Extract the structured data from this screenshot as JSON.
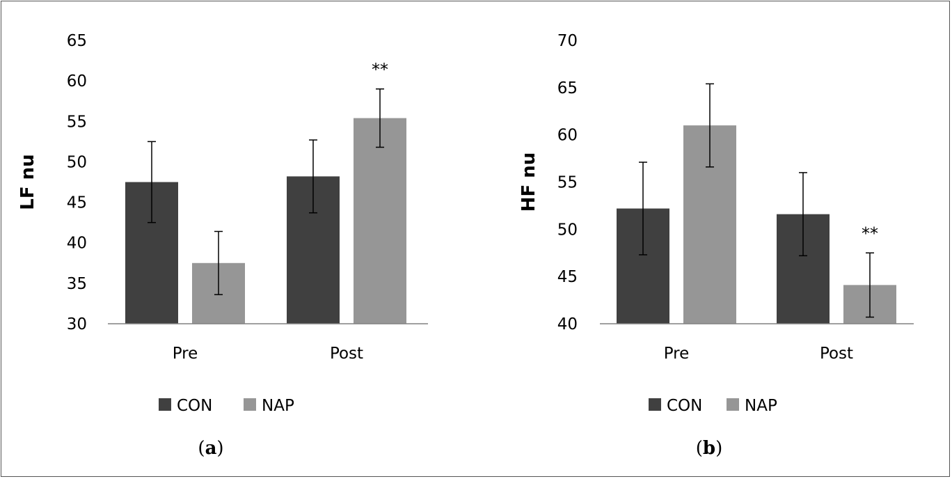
{
  "chart_data": [
    {
      "type": "bar",
      "categories": [
        "Pre",
        "Post"
      ],
      "series": [
        {
          "name": "CON",
          "values": [
            47.5,
            48.2
          ],
          "errors": [
            5.0,
            4.5
          ],
          "color": "#404040"
        },
        {
          "name": "NAP",
          "values": [
            37.5,
            55.4
          ],
          "errors": [
            3.9,
            3.6
          ],
          "color": "#969696"
        }
      ],
      "ylabel": "LF nu",
      "ylim": [
        30,
        65
      ],
      "yticks": [
        30,
        35,
        40,
        45,
        50,
        55,
        60,
        65
      ],
      "annotations": [
        {
          "text": "**",
          "series": "NAP",
          "category": "Post"
        }
      ],
      "panel_label": {
        "open": "(",
        "letter": "a",
        "close": ")"
      },
      "legend": "bottom-left",
      "grid": false
    },
    {
      "type": "bar",
      "categories": [
        "Pre",
        "Post"
      ],
      "series": [
        {
          "name": "CON",
          "values": [
            52.2,
            51.6
          ],
          "errors": [
            4.9,
            4.4
          ],
          "color": "#404040"
        },
        {
          "name": "NAP",
          "values": [
            61.0,
            44.1
          ],
          "errors": [
            4.4,
            3.4
          ],
          "color": "#969696"
        }
      ],
      "ylabel": "HF nu",
      "ylim": [
        40,
        70
      ],
      "yticks": [
        40,
        45,
        50,
        55,
        60,
        65,
        70
      ],
      "annotations": [
        {
          "text": "**",
          "series": "NAP",
          "category": "Post"
        }
      ],
      "panel_label": {
        "open": "(",
        "letter": "b",
        "close": ")"
      },
      "legend": "bottom-left",
      "grid": false
    }
  ]
}
